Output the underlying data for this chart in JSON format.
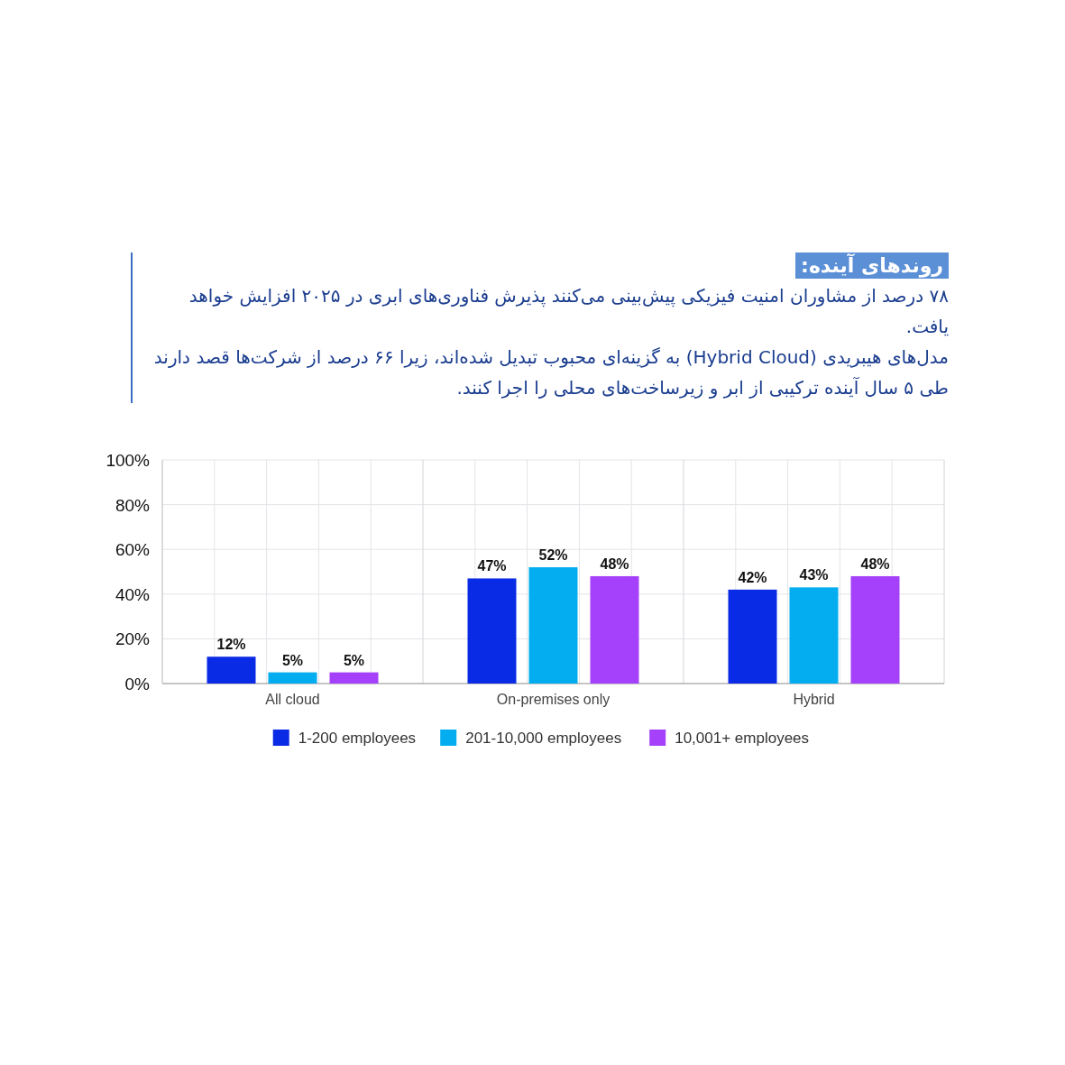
{
  "chart_data": {
    "type": "bar",
    "title": "روندهای آینده:",
    "subtitle": "۷۸ درصد از مشاوران امنیت فیزیکی پیش‌بینی می‌کنند پذیرش فناوری‌های ابری در ۲۰۲۵ افزایش خواهد یافت.\nمدل‌های هیبریدی (Hybrid Cloud) به گزینه‌ای محبوب تبدیل شده‌اند، زیرا ۶۶ درصد از شرکت‌ها قصد دارند طی ۵ سال آینده ترکیبی از ابر و زیرساخت‌های محلی را اجرا کنند.",
    "categories": [
      "All cloud",
      "On-premises only",
      "Hybrid"
    ],
    "series": [
      {
        "name": "1-200 employees",
        "color": "#0a2be6",
        "values": [
          12,
          47,
          42
        ],
        "value_labels": [
          "12%",
          "47%",
          "42%"
        ]
      },
      {
        "name": "201-10,000 employees",
        "color": "#03adef",
        "values": [
          5,
          52,
          43
        ],
        "value_labels": [
          "5%",
          "52%",
          "43%"
        ]
      },
      {
        "name": "10,001+ employees",
        "color": "#a540fb",
        "values": [
          5,
          48,
          48
        ],
        "value_labels": [
          "5%",
          "48%",
          "48%"
        ]
      }
    ],
    "ylim": [
      0,
      100
    ],
    "yticks": [
      {
        "value": 0,
        "label": "0%"
      },
      {
        "value": 20,
        "label": "20%"
      },
      {
        "value": 40,
        "label": "40%"
      },
      {
        "value": 60,
        "label": "60%"
      },
      {
        "value": 80,
        "label": "80%"
      },
      {
        "value": 100,
        "label": "100%"
      }
    ],
    "grid": true,
    "legend": "bottom"
  }
}
